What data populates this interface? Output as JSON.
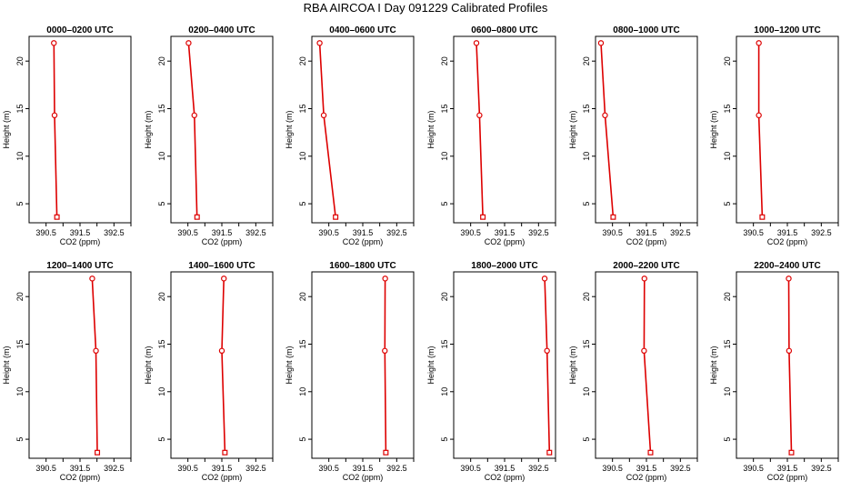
{
  "page_title": "RBA AIRCOA I  Day 091229  Calibrated Profiles",
  "chart_data": {
    "type": "line",
    "marker_color": "#dd0000",
    "line_color": "#dd0000",
    "xlabel": "CO2 (ppm)",
    "ylabel": "Height (m)",
    "xlim": [
      390.0,
      393.0
    ],
    "ylim": [
      3.0,
      22.6
    ],
    "xticks": [
      390.5,
      391.0,
      391.5,
      392.0,
      392.5,
      393.0
    ],
    "xtick_labels": [
      "390.5",
      "",
      "391.5",
      "",
      "392.5",
      ""
    ],
    "yticks": [
      5,
      10,
      15,
      20
    ],
    "ytick_labels": [
      "5",
      "10",
      "15",
      "20"
    ],
    "heights": [
      21.9,
      14.3,
      3.6
    ],
    "panels": [
      {
        "title": "0000–0200 UTC",
        "x": [
          390.73,
          390.75,
          390.82
        ]
      },
      {
        "title": "0200–0400 UTC",
        "x": [
          390.52,
          390.69,
          390.77
        ]
      },
      {
        "title": "0400–0600 UTC",
        "x": [
          390.23,
          390.35,
          390.7
        ]
      },
      {
        "title": "0600–0800 UTC",
        "x": [
          390.67,
          390.76,
          390.86
        ]
      },
      {
        "title": "0800–1000 UTC",
        "x": [
          390.16,
          390.28,
          390.52
        ]
      },
      {
        "title": "1000–1200 UTC",
        "x": [
          390.66,
          390.66,
          390.76
        ]
      },
      {
        "title": "1200–1400 UTC",
        "x": [
          391.86,
          391.97,
          392.01
        ]
      },
      {
        "title": "1400–1600 UTC",
        "x": [
          391.56,
          391.5,
          391.59
        ]
      },
      {
        "title": "1600–1800 UTC",
        "x": [
          392.16,
          392.15,
          392.18
        ]
      },
      {
        "title": "1800–2000 UTC",
        "x": [
          392.68,
          392.75,
          392.82
        ]
      },
      {
        "title": "2000–2200 UTC",
        "x": [
          391.44,
          391.43,
          391.62
        ]
      },
      {
        "title": "2200–2400 UTC",
        "x": [
          391.54,
          391.55,
          391.62
        ]
      }
    ]
  }
}
